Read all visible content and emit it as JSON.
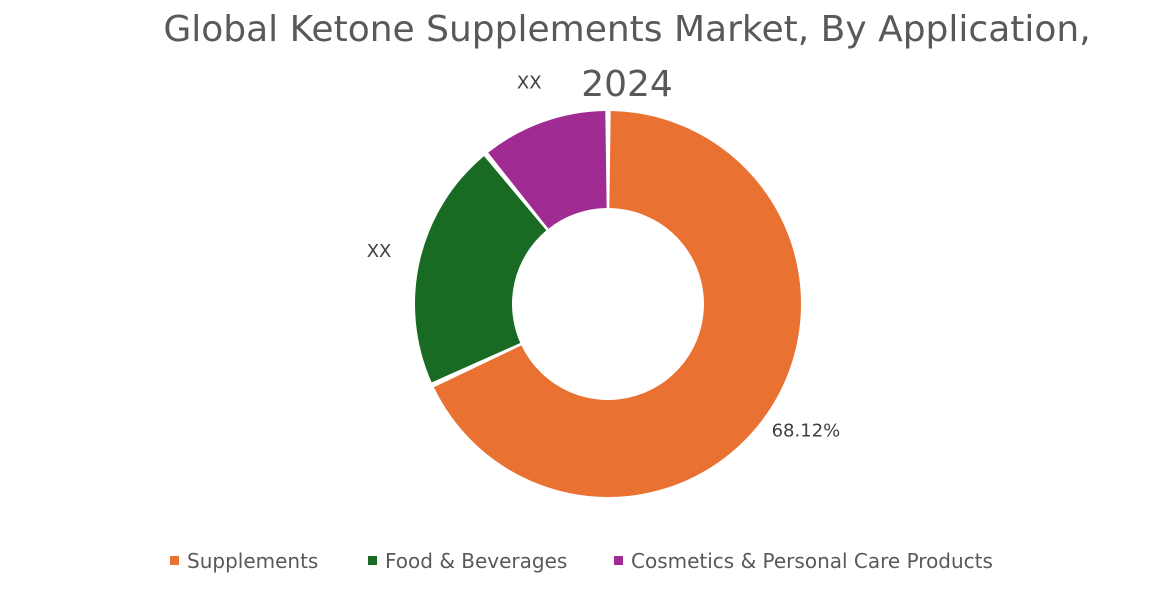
{
  "chart_data": {
    "type": "pie",
    "variant": "donut",
    "title": "Global Ketone Supplements Market, By Application, 2024",
    "title_lines": [
      "Global Ketone Supplements Market, By Application,",
      "2024"
    ],
    "categories": [
      "Supplements",
      "Food & Beverages",
      "Cosmetics & Personal Care Products"
    ],
    "values": [
      68.12,
      21.0,
      10.88
    ],
    "data_labels": [
      "68.12%",
      "XX",
      "XX"
    ],
    "colors": [
      "#E97132",
      "#196B24",
      "#A02B93"
    ],
    "legend_position": "bottom",
    "grid": false
  }
}
